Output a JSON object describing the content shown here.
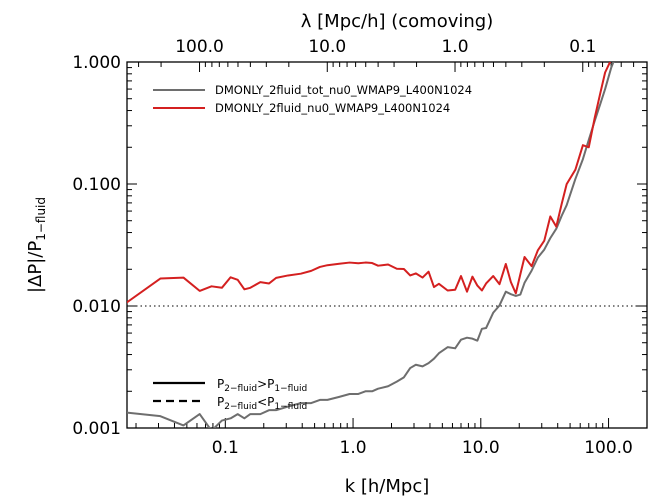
{
  "chart_data": {
    "type": "line",
    "xlabel": "k [h/Mpc]",
    "ylabel_main": "|ΔP|/P",
    "ylabel_sub": "1−fluid",
    "top_xlabel": "λ [Mpc/h] (comoving)",
    "x_scale": "log",
    "y_scale": "log",
    "xlim": [
      0.017,
      200
    ],
    "ylim": [
      0.001,
      1.0
    ],
    "x_tick_labels": [
      "0.1",
      "1.0",
      "10.0",
      "100.0"
    ],
    "x_tick_values": [
      0.1,
      1.0,
      10.0,
      100.0
    ],
    "y_tick_labels": [
      "0.001",
      "0.010",
      "0.100",
      "1.000"
    ],
    "y_tick_values": [
      0.001,
      0.01,
      0.1,
      1.0
    ],
    "top_tick_labels": [
      "100.0",
      "10.0",
      "1.0",
      "0.1"
    ],
    "top_tick_lambda": [
      100.0,
      10.0,
      1.0,
      0.1
    ],
    "reference_line": {
      "y": 0.01,
      "style": "dotted"
    },
    "series": [
      {
        "name": "DMONLY_2fluid_tot_nu0_WMAP9_L400N1024",
        "color": "#6e6e6e",
        "x": [
          0.0157,
          0.031,
          0.047,
          0.063,
          0.078,
          0.094,
          0.11,
          0.125,
          0.141,
          0.157,
          0.188,
          0.22,
          0.25,
          0.31,
          0.39,
          0.47,
          0.55,
          0.63,
          0.78,
          0.94,
          1.1,
          1.25,
          1.41,
          1.57,
          1.88,
          2.2,
          2.5,
          2.8,
          3.1,
          3.5,
          3.9,
          4.3,
          4.7,
          5.5,
          6.3,
          7.0,
          7.8,
          8.6,
          9.4,
          10.2,
          11.0,
          12.5,
          14.0,
          15.7,
          17.2,
          18.8,
          20.4,
          22.0,
          25.0,
          28.0,
          31.4,
          35.0,
          39.0,
          43.0,
          47.0,
          55.0,
          63.0,
          70.0,
          78.0,
          86.0,
          94.0,
          105.0,
          115.0,
          125.0
        ],
        "values": [
          0.00135,
          0.00125,
          0.00105,
          0.0013,
          0.00095,
          0.00115,
          0.0012,
          0.0013,
          0.0012,
          0.0013,
          0.0013,
          0.0014,
          0.0014,
          0.0015,
          0.0016,
          0.0016,
          0.0017,
          0.0017,
          0.0018,
          0.0019,
          0.0019,
          0.002,
          0.002,
          0.0021,
          0.0022,
          0.0024,
          0.0026,
          0.0031,
          0.0033,
          0.0032,
          0.0034,
          0.0037,
          0.0041,
          0.0046,
          0.0045,
          0.0053,
          0.0055,
          0.0054,
          0.0052,
          0.0065,
          0.0066,
          0.0088,
          0.0101,
          0.0131,
          0.0125,
          0.0121,
          0.0124,
          0.0155,
          0.0195,
          0.025,
          0.029,
          0.036,
          0.043,
          0.055,
          0.067,
          0.11,
          0.16,
          0.23,
          0.33,
          0.45,
          0.6,
          0.9,
          1.15,
          1.3
        ]
      },
      {
        "name": "DMONLY_2fluid_nu0_WMAP9_L400N1024",
        "color": "#d42020",
        "x": [
          0.0157,
          0.031,
          0.047,
          0.063,
          0.078,
          0.094,
          0.11,
          0.125,
          0.141,
          0.157,
          0.188,
          0.22,
          0.25,
          0.31,
          0.39,
          0.47,
          0.55,
          0.63,
          0.78,
          0.94,
          1.1,
          1.25,
          1.41,
          1.57,
          1.88,
          2.2,
          2.5,
          2.8,
          3.1,
          3.5,
          3.9,
          4.3,
          4.7,
          5.5,
          6.3,
          7.0,
          7.8,
          8.6,
          9.4,
          10.2,
          11.0,
          12.5,
          14.0,
          15.7,
          17.2,
          18.8,
          20.4,
          22.0,
          25.0,
          28.0,
          31.4,
          35.0,
          39.0,
          43.0,
          47.0,
          55.0,
          63.0,
          70.0,
          78.0,
          86.0,
          94.0,
          105.0,
          115.0,
          125.0
        ],
        "values": [
          0.0101,
          0.0168,
          0.0171,
          0.0133,
          0.0145,
          0.0141,
          0.0172,
          0.0164,
          0.0137,
          0.0141,
          0.0157,
          0.0153,
          0.017,
          0.0178,
          0.0184,
          0.0194,
          0.0209,
          0.0216,
          0.0222,
          0.0227,
          0.0224,
          0.0227,
          0.0225,
          0.0214,
          0.0219,
          0.0202,
          0.0201,
          0.0178,
          0.0185,
          0.0171,
          0.0191,
          0.0143,
          0.0152,
          0.0134,
          0.0136,
          0.0176,
          0.0131,
          0.0174,
          0.0147,
          0.0134,
          0.0153,
          0.0176,
          0.0151,
          0.0221,
          0.0157,
          0.0127,
          0.0182,
          0.0252,
          0.0212,
          0.0287,
          0.0343,
          0.0542,
          0.0447,
          0.0689,
          0.0998,
          0.131,
          0.208,
          0.2,
          0.35,
          0.55,
          0.82,
          1.05,
          1.2,
          1.3
        ]
      }
    ],
    "legend2": {
      "solid_label": "P",
      "solid_sub1": "2−fluid",
      "solid_op": ">P",
      "solid_sub2": "1−fluid",
      "dashed_label": "P",
      "dashed_sub1": "2−fluid",
      "dashed_op": "<P",
      "dashed_sub2": "1−fluid"
    }
  }
}
